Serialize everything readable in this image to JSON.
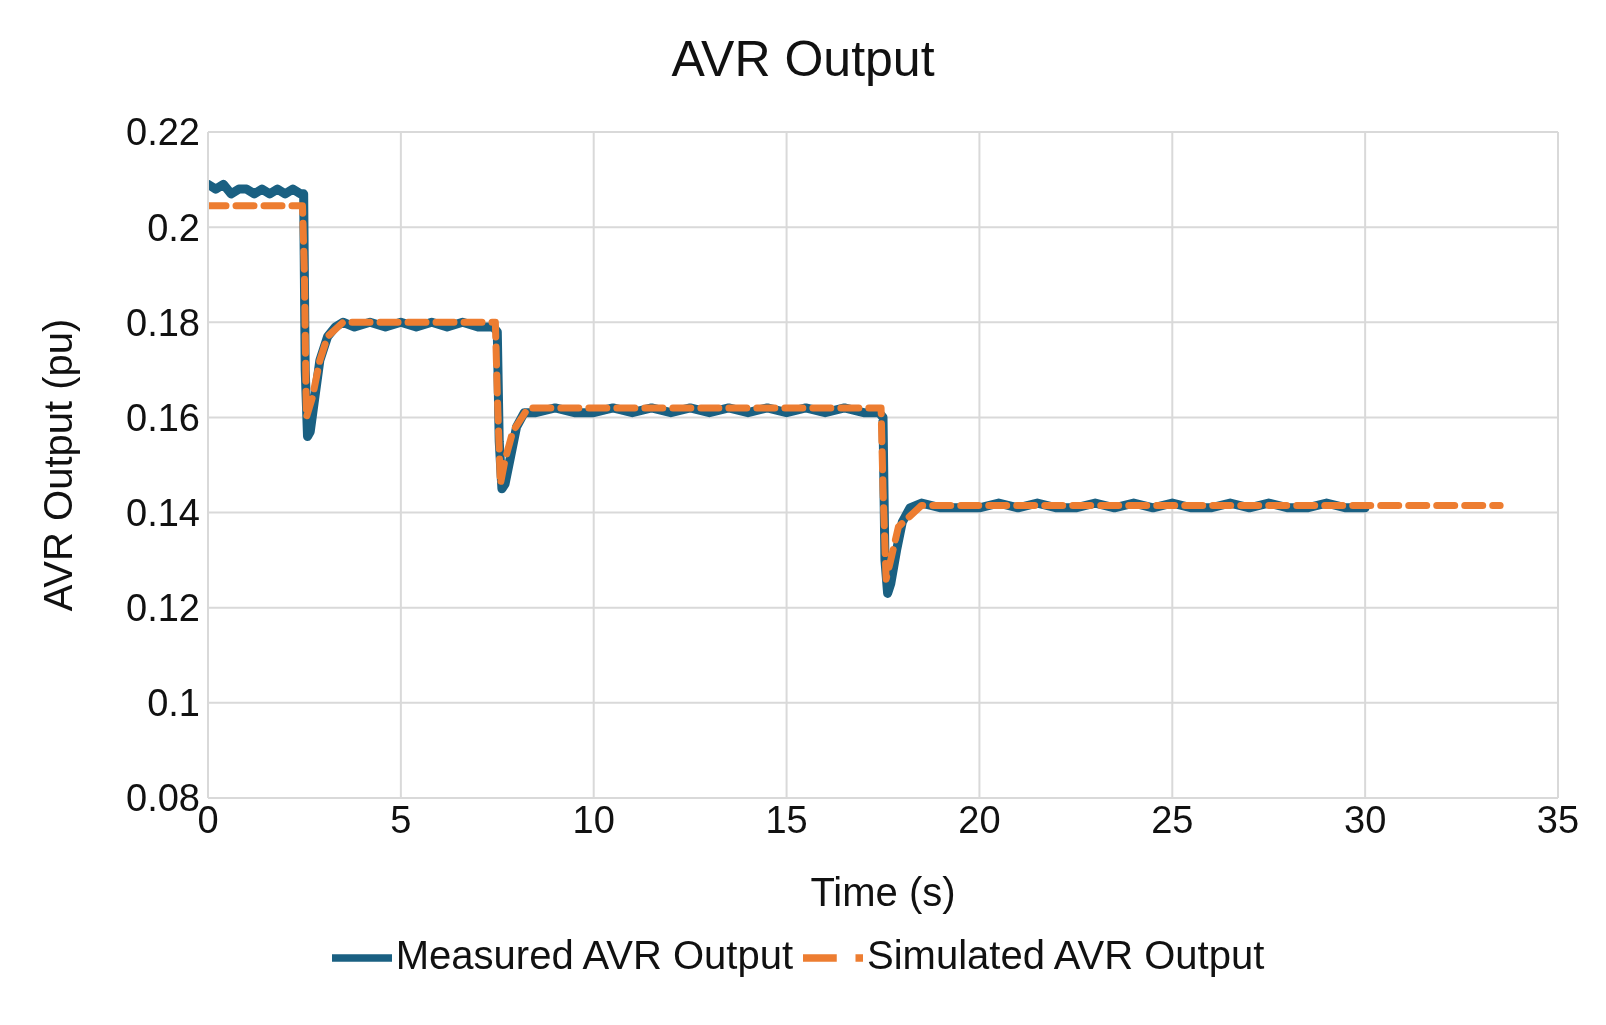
{
  "chart_data": {
    "type": "line",
    "title": "AVR Output",
    "xlabel": "Time (s)",
    "ylabel": "AVR Output (pu)",
    "xlim": [
      0,
      35
    ],
    "xticks": [
      0,
      5,
      10,
      15,
      20,
      25,
      30,
      35
    ],
    "ylim": [
      0.08,
      0.22
    ],
    "yticks": [
      0.08,
      0.1,
      0.12,
      0.14,
      0.16,
      0.18,
      0.2,
      0.22
    ],
    "grid": true,
    "legend": "bottom",
    "marker": "none",
    "series": [
      {
        "name": "Measured AVR Output",
        "color": "#1a6082",
        "line_style": "solid",
        "x": [
          0,
          0.2,
          0.4,
          0.6,
          0.8,
          1.0,
          1.2,
          1.4,
          1.6,
          1.8,
          2.0,
          2.2,
          2.4,
          2.48,
          2.52,
          2.58,
          2.65,
          2.75,
          2.9,
          3.1,
          3.3,
          3.5,
          3.8,
          4.2,
          4.6,
          5.0,
          5.4,
          5.8,
          6.2,
          6.6,
          7.0,
          7.4,
          7.5,
          7.55,
          7.62,
          7.7,
          7.85,
          8.0,
          8.2,
          8.5,
          9,
          9.5,
          10,
          10.5,
          11,
          11.5,
          12,
          12.5,
          13,
          13.5,
          14,
          14.5,
          15,
          15.5,
          16,
          16.5,
          17,
          17.4,
          17.5,
          17.55,
          17.62,
          17.7,
          17.85,
          18.0,
          18.2,
          18.5,
          19,
          19.5,
          20,
          20.5,
          21,
          21.5,
          22,
          22.5,
          23,
          23.5,
          24,
          24.5,
          25,
          25.5,
          26,
          26.5,
          27,
          27.5,
          28,
          28.5,
          29,
          29.5,
          30
        ],
        "values": [
          0.209,
          0.208,
          0.209,
          0.207,
          0.208,
          0.208,
          0.207,
          0.208,
          0.207,
          0.208,
          0.207,
          0.208,
          0.207,
          0.207,
          0.17,
          0.156,
          0.157,
          0.163,
          0.172,
          0.177,
          0.179,
          0.18,
          0.179,
          0.18,
          0.179,
          0.18,
          0.179,
          0.18,
          0.179,
          0.18,
          0.179,
          0.179,
          0.178,
          0.155,
          0.145,
          0.146,
          0.152,
          0.158,
          0.161,
          0.161,
          0.162,
          0.161,
          0.161,
          0.162,
          0.161,
          0.162,
          0.161,
          0.162,
          0.161,
          0.162,
          0.161,
          0.162,
          0.161,
          0.162,
          0.161,
          0.162,
          0.161,
          0.161,
          0.16,
          0.13,
          0.123,
          0.125,
          0.132,
          0.138,
          0.141,
          0.142,
          0.141,
          0.141,
          0.141,
          0.142,
          0.141,
          0.142,
          0.141,
          0.141,
          0.142,
          0.141,
          0.142,
          0.141,
          0.142,
          0.141,
          0.141,
          0.142,
          0.141,
          0.142,
          0.141,
          0.141,
          0.142,
          0.141,
          0.141
        ]
      },
      {
        "name": "Simulated AVR Output",
        "color": "#ed7d31",
        "line_style": "dashed",
        "x": [
          0,
          2.45,
          2.5,
          2.55,
          2.7,
          2.9,
          3.1,
          3.5,
          7.45,
          7.5,
          7.58,
          7.7,
          7.9,
          8.3,
          17.45,
          17.5,
          17.58,
          17.7,
          17.9,
          18.5,
          33.5
        ],
        "values": [
          0.2045,
          0.2045,
          0.19,
          0.16,
          0.164,
          0.172,
          0.177,
          0.18,
          0.18,
          0.165,
          0.146,
          0.151,
          0.157,
          0.162,
          0.162,
          0.145,
          0.126,
          0.13,
          0.137,
          0.1415,
          0.1415
        ]
      }
    ]
  }
}
